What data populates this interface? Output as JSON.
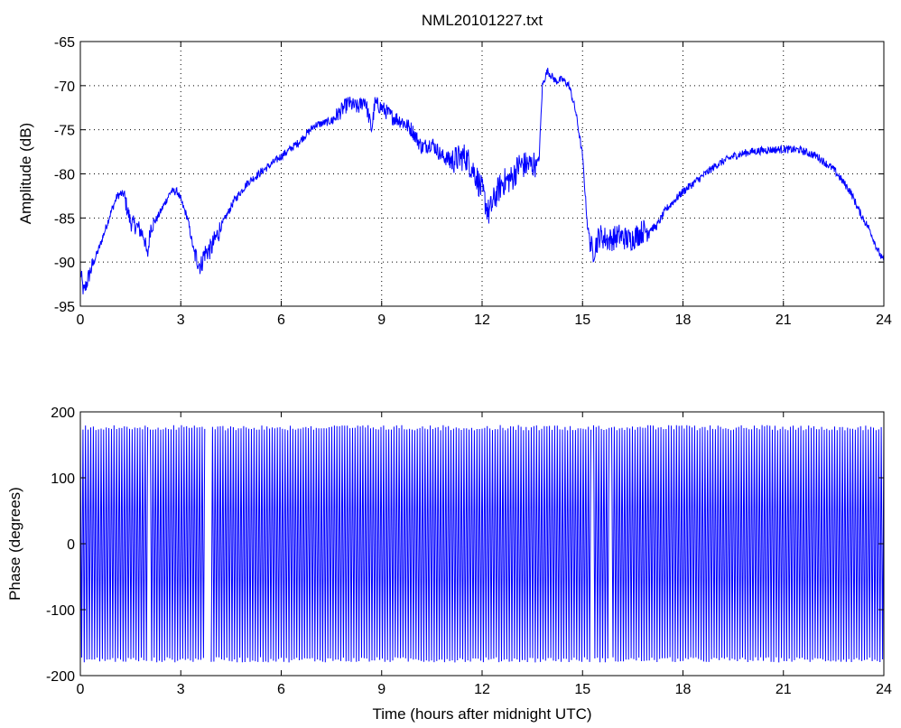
{
  "chart_data": [
    {
      "type": "line",
      "title": "NML20101227.txt",
      "xlabel": "",
      "ylabel": "Amplitude (dB)",
      "xlim": [
        0,
        24
      ],
      "ylim": [
        -95,
        -65
      ],
      "xticks": [
        0,
        3,
        6,
        9,
        12,
        15,
        18,
        21,
        24
      ],
      "yticks": [
        -95,
        -90,
        -85,
        -80,
        -75,
        -70,
        -65
      ],
      "grid": true,
      "series": [
        {
          "color": "#0000ff",
          "x": [
            0,
            0.1,
            0.3,
            0.6,
            0.9,
            1.1,
            1.2,
            1.3,
            1.4,
            1.5,
            1.7,
            1.9,
            2.0,
            2.1,
            2.3,
            2.5,
            2.7,
            2.9,
            3.0,
            3.2,
            3.4,
            3.6,
            3.7,
            3.9,
            4.2,
            4.6,
            5.0,
            5.5,
            6.0,
            6.5,
            7.0,
            7.5,
            8.0,
            8.3,
            8.5,
            8.7,
            8.8,
            9.0,
            9.3,
            9.6,
            9.9,
            10.2,
            10.5,
            10.8,
            11.1,
            11.5,
            11.8,
            12.0,
            12.2,
            12.4,
            12.6,
            12.9,
            13.1,
            13.5,
            13.7,
            13.8,
            13.95,
            14.2,
            14.4,
            14.6,
            14.8,
            15.0,
            15.15,
            15.3,
            15.5,
            15.8,
            16.1,
            16.4,
            16.8,
            17.2,
            17.5,
            18.0,
            18.5,
            19.0,
            19.5,
            20.0,
            20.5,
            21.0,
            21.5,
            22.0,
            22.5,
            23.0,
            23.3,
            23.6,
            23.8,
            24.0
          ],
          "y": [
            -91,
            -93.5,
            -91,
            -88,
            -84.5,
            -82.5,
            -82.3,
            -82.3,
            -84,
            -85.5,
            -86,
            -87,
            -89.5,
            -86,
            -85,
            -83.5,
            -82,
            -82,
            -83,
            -85,
            -89,
            -90.5,
            -89,
            -88.5,
            -86,
            -83,
            -81,
            -79.5,
            -78,
            -76.5,
            -74.5,
            -74,
            -72,
            -72.5,
            -71.5,
            -75,
            -72,
            -72.5,
            -73.5,
            -74,
            -75,
            -77,
            -76.5,
            -78,
            -78.5,
            -78,
            -80,
            -82,
            -84.5,
            -82.5,
            -81,
            -80.5,
            -79,
            -79,
            -78.5,
            -70,
            -68.3,
            -69.5,
            -69.3,
            -70,
            -73,
            -78,
            -86,
            -89,
            -87,
            -87.5,
            -87,
            -87.5,
            -86.5,
            -86,
            -84,
            -82,
            -80.5,
            -79,
            -78,
            -77.5,
            -77.3,
            -77.2,
            -77.3,
            -78,
            -79.5,
            -82,
            -84.5,
            -86.5,
            -88.5,
            -90
          ]
        }
      ]
    },
    {
      "type": "line",
      "title": "",
      "xlabel": "Time (hours after midnight UTC)",
      "ylabel": "Phase (degrees)",
      "xlim": [
        0,
        24
      ],
      "ylim": [
        -200,
        200
      ],
      "xticks": [
        0,
        3,
        6,
        9,
        12,
        15,
        18,
        21,
        24
      ],
      "yticks": [
        -200,
        -100,
        0,
        100,
        200
      ],
      "grid": false,
      "series": [
        {
          "color": "#0000ff",
          "pattern": "wrapped phase, oscillating between -180 and 180",
          "x": [
            0,
            24
          ],
          "y": [
            -180,
            180
          ]
        }
      ]
    }
  ]
}
